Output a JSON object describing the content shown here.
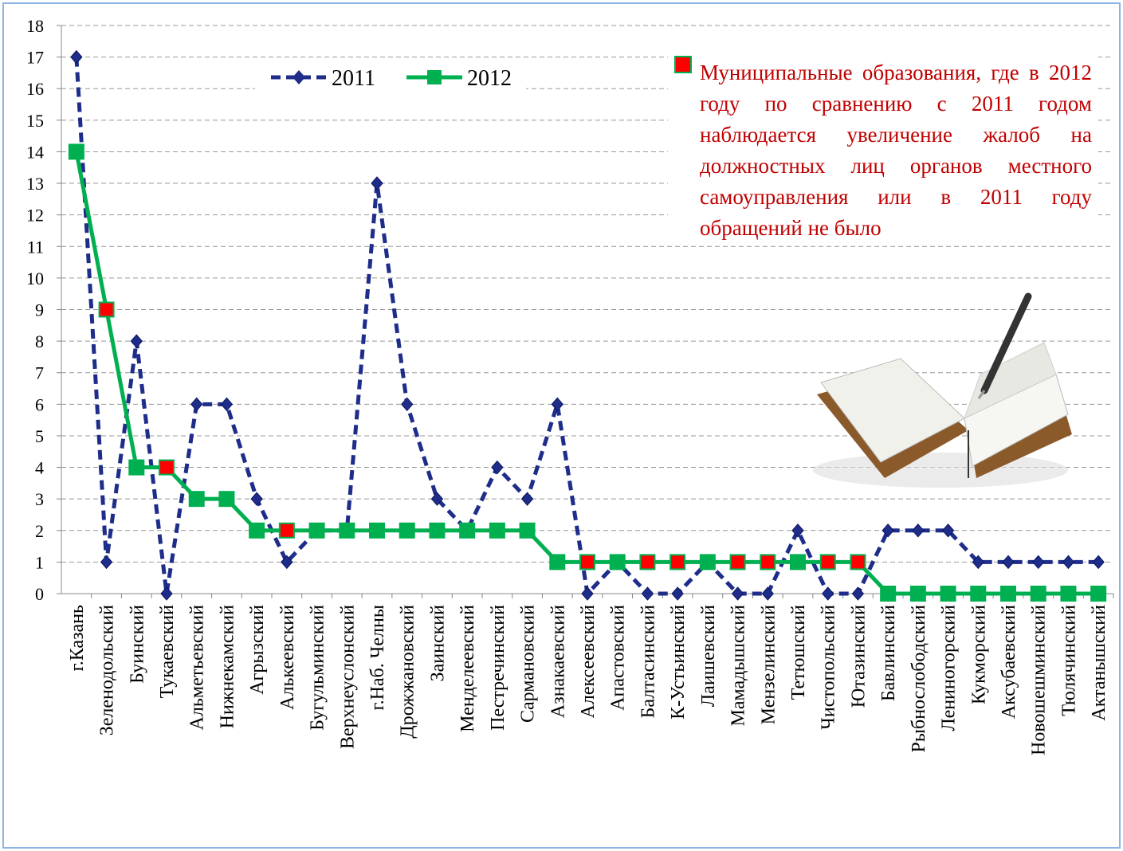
{
  "chart_data": {
    "type": "line",
    "annotation": "Муниципальные образования, где в 2012 году по сравнению с 2011 годом наблюдается увеличение жалоб на должностных лиц органов местного самоуправления или в 2011 году обращений не было",
    "annotation_color": "#c00000",
    "categories": [
      "г.Казань",
      "Зеленодольский",
      "Буинский",
      "Тукаевский",
      "Альметьевский",
      "Нижнекамский",
      "Агрызский",
      "Алькеевский",
      "Бугульминский",
      "Верхнеуслонский",
      "г.Наб. Челны",
      "Дрожжановский",
      "Заинский",
      "Менделеевский",
      "Пестречинский",
      "Сармановский",
      "Азнакаевский",
      "Алексеевский",
      "Апастовский",
      "Балтасинский",
      "К-Устьинский",
      "Лаишевский",
      "Мамадышский",
      "Мензелинский",
      "Тетюшский",
      "Чистопольский",
      "Ютазинский",
      "Бавлинский",
      "Рыбнослободский",
      "Лениногорский",
      "Кукморский",
      "Аксубаевский",
      "Новошешминский",
      "Тюлячинский",
      "Актанышский"
    ],
    "series": [
      {
        "name": "2011",
        "color": "#1f2d8a",
        "dash": true,
        "marker": "diamond",
        "values": [
          17,
          1,
          8,
          0,
          6,
          6,
          3,
          1,
          2,
          2,
          13,
          6,
          3,
          2,
          4,
          3,
          6,
          0,
          1,
          0,
          0,
          1,
          0,
          0,
          2,
          0,
          0,
          2,
          2,
          2,
          1,
          1,
          1,
          1,
          1
        ]
      },
      {
        "name": "2012",
        "color": "#00b050",
        "dash": false,
        "marker": "square",
        "values": [
          14,
          9,
          4,
          4,
          3,
          3,
          2,
          2,
          2,
          2,
          2,
          2,
          2,
          2,
          2,
          2,
          1,
          1,
          1,
          1,
          1,
          1,
          1,
          1,
          1,
          1,
          1,
          0,
          0,
          0,
          0,
          0,
          0,
          0,
          0
        ],
        "point_colors": [
          "#00b050",
          "#ff0000",
          "#00b050",
          "#ff0000",
          "#00b050",
          "#00b050",
          "#00b050",
          "#ff0000",
          "#00b050",
          "#00b050",
          "#00b050",
          "#00b050",
          "#00b050",
          "#00b050",
          "#00b050",
          "#00b050",
          "#00b050",
          "#ff0000",
          "#00b050",
          "#ff0000",
          "#ff0000",
          "#00b050",
          "#ff0000",
          "#ff0000",
          "#00b050",
          "#ff0000",
          "#ff0000",
          "#00b050",
          "#00b050",
          "#00b050",
          "#00b050",
          "#00b050",
          "#00b050",
          "#00b050",
          "#00b050"
        ]
      }
    ],
    "ylim": [
      0,
      18
    ],
    "yticks": [
      0,
      1,
      2,
      3,
      4,
      5,
      6,
      7,
      8,
      9,
      10,
      11,
      12,
      13,
      14,
      15,
      16,
      17,
      18
    ],
    "grid": true
  }
}
